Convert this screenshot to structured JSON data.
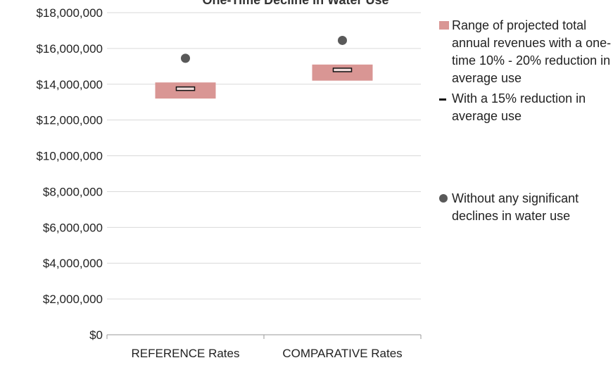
{
  "chart_data": {
    "type": "range-bar-with-markers",
    "title": "One-Time Decline in Water Use",
    "categories": [
      "REFERENCE Rates",
      "COMPARATIVE Rates"
    ],
    "ylim": [
      0,
      18000000
    ],
    "yticks": [
      "$0",
      "$2,000,000",
      "$4,000,000",
      "$6,000,000",
      "$8,000,000",
      "$10,000,000",
      "$12,000,000",
      "$14,000,000",
      "$16,000,000",
      "$18,000,000"
    ],
    "grid": true,
    "legend_position": "right",
    "series": [
      {
        "name": "Range of projected total annual revenues with a one-time 10% - 20% reduction in average use",
        "color": "#d99694",
        "ranges": [
          [
            13200000,
            14100000
          ],
          [
            14200000,
            15100000
          ]
        ]
      },
      {
        "name": "With a 15% reduction in average use",
        "color": "#111111",
        "values": [
          13750000,
          14800000
        ]
      },
      {
        "name": "Without any significant declines in water use",
        "color": "#595959",
        "values": [
          15450000,
          16450000
        ]
      }
    ]
  }
}
